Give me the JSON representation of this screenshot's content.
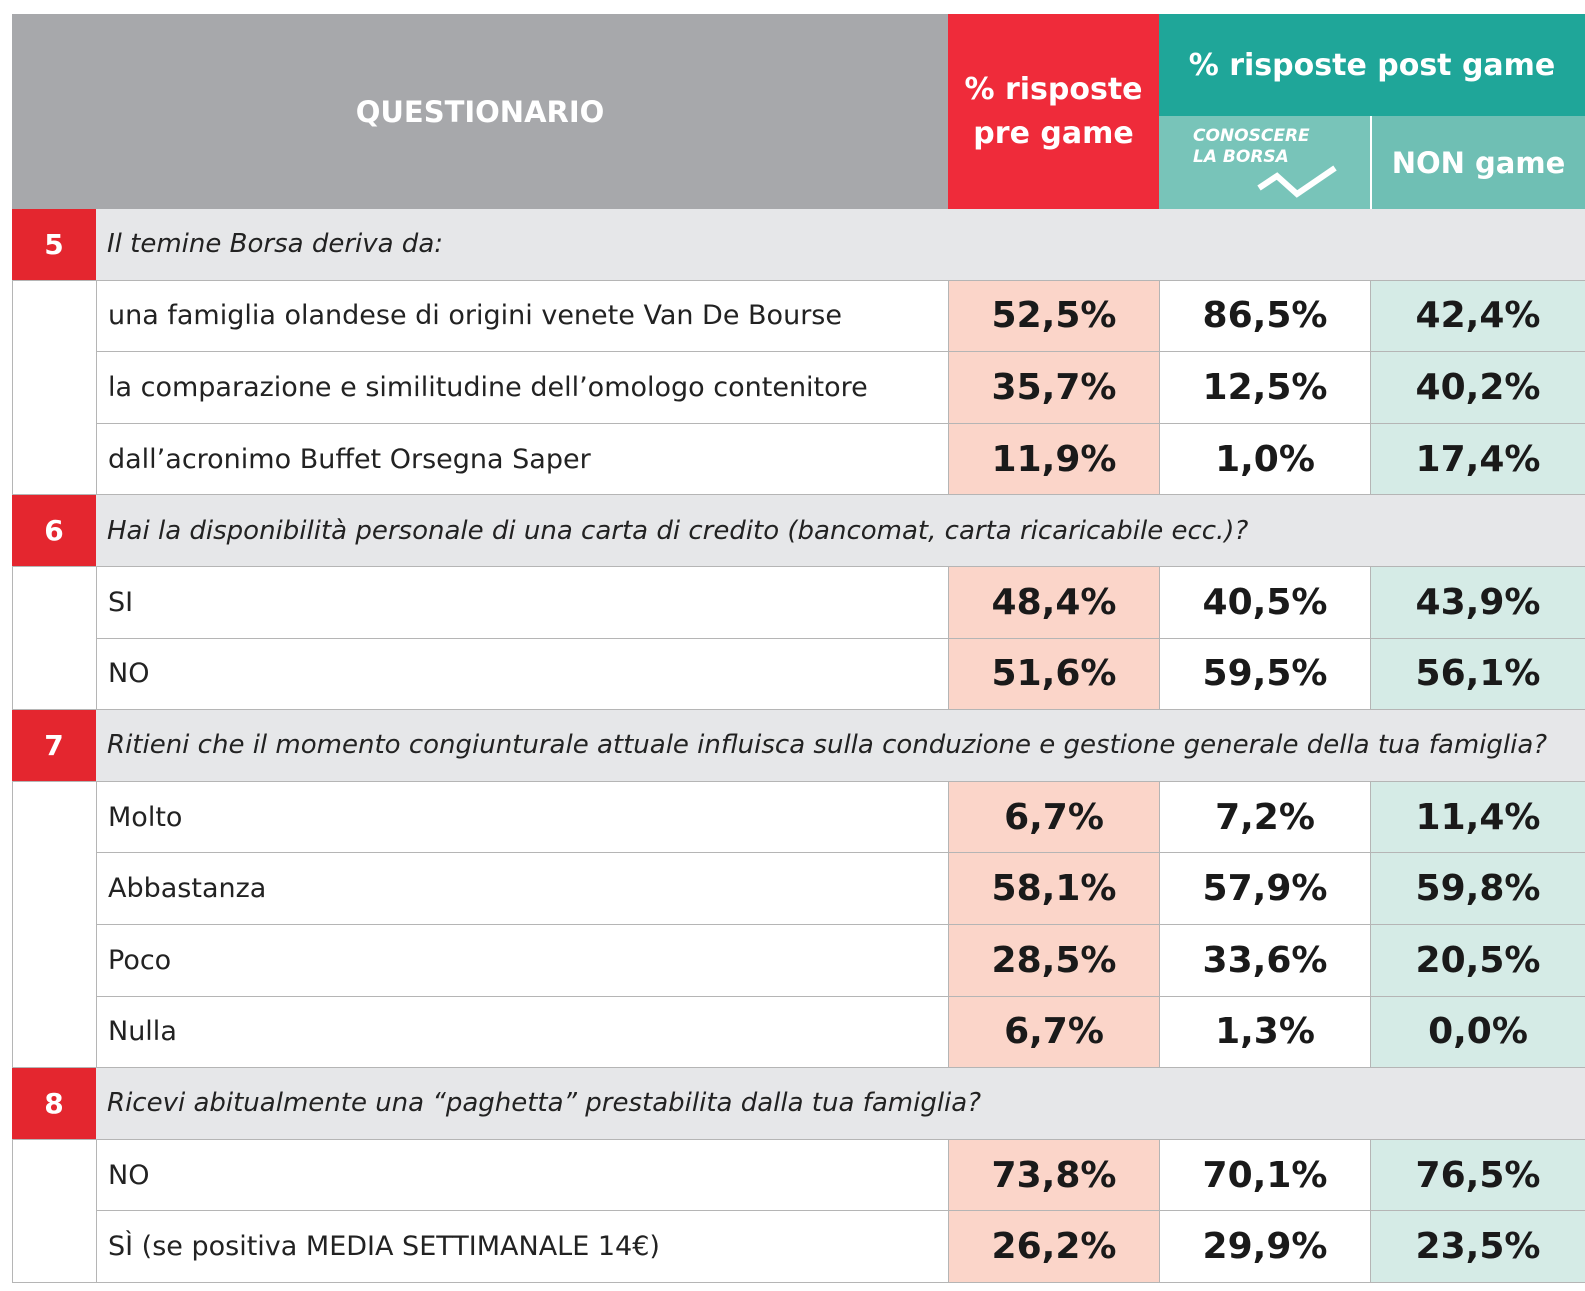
{
  "header": {
    "title": "QUESTIONARIO",
    "pre": "% risposte pre game",
    "post": "% risposte post game",
    "logo": [
      "CONOSCERE",
      "LA BORSA"
    ],
    "non_game": "NON game"
  },
  "sections": [
    {
      "number": "5",
      "question": "Il temine Borsa deriva da:",
      "rows": [
        {
          "label": "una famiglia olandese di origini venete Van De Bourse",
          "values": [
            "52,5%",
            "86,5%",
            "42,4%"
          ]
        },
        {
          "label": "la comparazione e similitudine dell’omologo contenitore",
          "values": [
            "35,7%",
            "12,5%",
            "40,2%"
          ]
        },
        {
          "label": "dall’acronimo Buffet Orsegna Saper",
          "values": [
            "11,9%",
            "1,0%",
            "17,4%"
          ]
        }
      ]
    },
    {
      "number": "6",
      "question": "Hai la disponibilità personale di una carta di credito (bancomat, carta ricaricabile ecc.)?",
      "rows": [
        {
          "label": "SI",
          "values": [
            "48,4%",
            "40,5%",
            "43,9%"
          ]
        },
        {
          "label": "NO",
          "values": [
            "51,6%",
            "59,5%",
            "56,1%"
          ]
        }
      ]
    },
    {
      "number": "7",
      "question": "Ritieni che il momento congiunturale attuale influisca sulla conduzione e gestione generale della tua famiglia?",
      "rows": [
        {
          "label": "Molto",
          "values": [
            "6,7%",
            "7,2%",
            "11,4%"
          ]
        },
        {
          "label": "Abbastanza",
          "values": [
            "58,1%",
            "57,9%",
            "59,8%"
          ]
        },
        {
          "label": "Poco",
          "values": [
            "28,5%",
            "33,6%",
            "20,5%"
          ]
        },
        {
          "label": "Nulla",
          "values": [
            "6,7%",
            "1,3%",
            "0,0%"
          ]
        }
      ]
    },
    {
      "number": "8",
      "question": "Ricevi abitualmente una “paghetta” prestabilita dalla tua famiglia?",
      "rows": [
        {
          "label": "NO",
          "values": [
            "73,8%",
            "70,1%",
            "76,5%"
          ]
        },
        {
          "label": "SÌ (se positiva MEDIA SETTIMANALE 14€)",
          "values": [
            "26,2%",
            "29,9%",
            "23,5%"
          ]
        }
      ]
    }
  ]
}
